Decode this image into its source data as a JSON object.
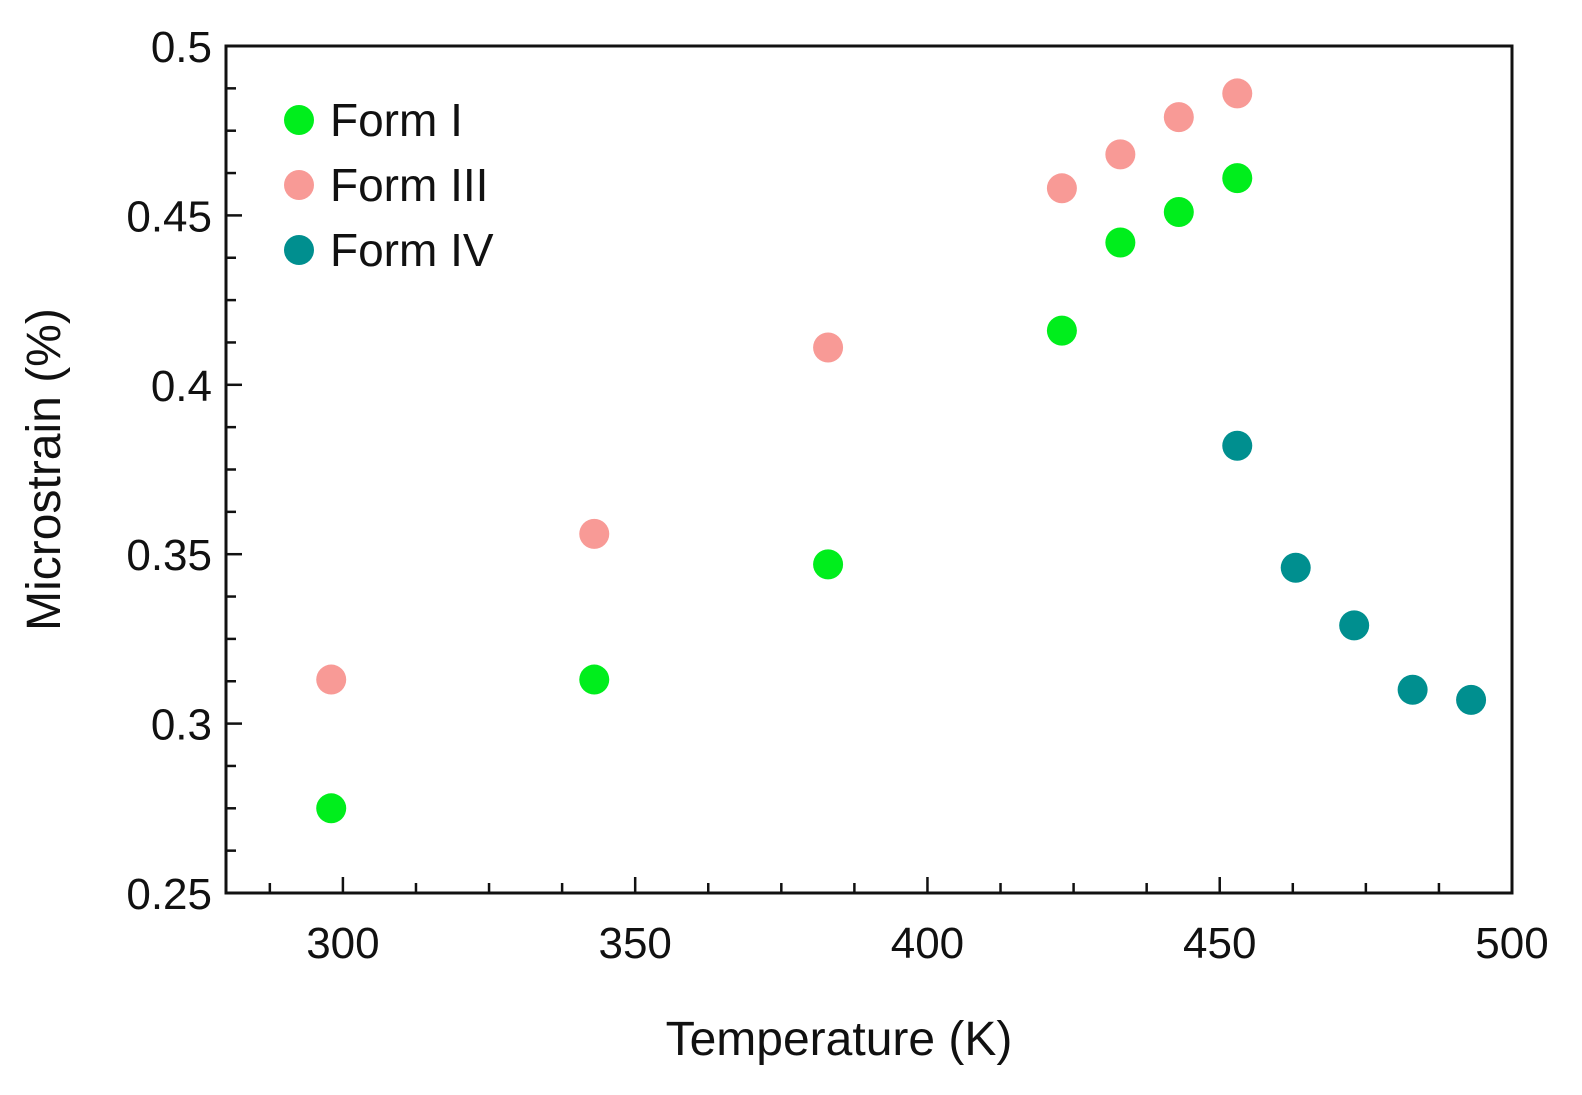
{
  "chart_data": {
    "type": "scatter",
    "title": "",
    "xlabel": "Temperature (K)",
    "ylabel": "Microstrain (%)",
    "xlim": [
      280,
      500
    ],
    "ylim": [
      0.25,
      0.5
    ],
    "xticks": [
      "300",
      "350",
      "400",
      "450",
      "500"
    ],
    "yticks": [
      "0.25",
      "0.3",
      "0.35",
      "0.4",
      "0.45",
      "0.5"
    ],
    "grid": false,
    "legend_position": "top-left",
    "series": [
      {
        "name": "Form I",
        "color": "#00ee1c",
        "x": [
          298,
          343,
          383,
          423,
          433,
          443,
          453
        ],
        "y": [
          0.275,
          0.313,
          0.347,
          0.416,
          0.442,
          0.451,
          0.461
        ]
      },
      {
        "name": "Form III",
        "color": "#f89a96",
        "x": [
          298,
          343,
          383,
          423,
          433,
          443,
          453
        ],
        "y": [
          0.313,
          0.356,
          0.411,
          0.458,
          0.468,
          0.479,
          0.486
        ]
      },
      {
        "name": "Form IV",
        "color": "#008f8f",
        "x": [
          453,
          463,
          473,
          483,
          493
        ],
        "y": [
          0.382,
          0.346,
          0.329,
          0.31,
          0.307
        ]
      }
    ]
  }
}
